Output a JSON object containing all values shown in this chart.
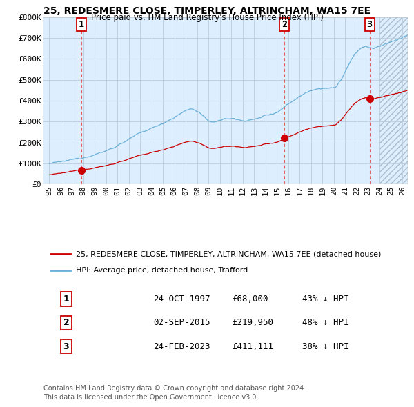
{
  "title": "25, REDESMERE CLOSE, TIMPERLEY, ALTRINCHAM, WA15 7EE",
  "subtitle": "Price paid vs. HM Land Registry's House Price Index (HPI)",
  "hpi_label": "HPI: Average price, detached house, Trafford",
  "property_label": "25, REDESMERE CLOSE, TIMPERLEY, ALTRINCHAM, WA15 7EE (detached house)",
  "footer_line1": "Contains HM Land Registry data © Crown copyright and database right 2024.",
  "footer_line2": "This data is licensed under the Open Government Licence v3.0.",
  "transactions": [
    {
      "num": 1,
      "date": "24-OCT-1997",
      "price": 68000,
      "price_str": "£68,000",
      "pct": "43% ↓ HPI",
      "year": 1997.82
    },
    {
      "num": 2,
      "date": "02-SEP-2015",
      "price": 219950,
      "price_str": "£219,950",
      "pct": "48% ↓ HPI",
      "year": 2015.67
    },
    {
      "num": 3,
      "date": "24-FEB-2023",
      "price": 411111,
      "price_str": "£411,111",
      "pct": "38% ↓ HPI",
      "year": 2023.15
    }
  ],
  "xlim": [
    1994.5,
    2026.5
  ],
  "ylim": [
    0,
    800000
  ],
  "yticks": [
    0,
    100000,
    200000,
    300000,
    400000,
    500000,
    600000,
    700000,
    800000
  ],
  "ytick_labels": [
    "£0",
    "£100K",
    "£200K",
    "£300K",
    "£400K",
    "£500K",
    "£600K",
    "£700K",
    "£800K"
  ],
  "xtick_years": [
    1995,
    1996,
    1997,
    1998,
    1999,
    2000,
    2001,
    2002,
    2003,
    2004,
    2005,
    2006,
    2007,
    2008,
    2009,
    2010,
    2011,
    2012,
    2013,
    2014,
    2015,
    2016,
    2017,
    2018,
    2019,
    2020,
    2021,
    2022,
    2023,
    2024,
    2025,
    2026
  ],
  "hpi_color": "#6ab0d8",
  "price_color": "#cc0000",
  "vline_color": "#e06060",
  "chart_bg": "#ddeeff",
  "grid_color": "#bbccdd"
}
